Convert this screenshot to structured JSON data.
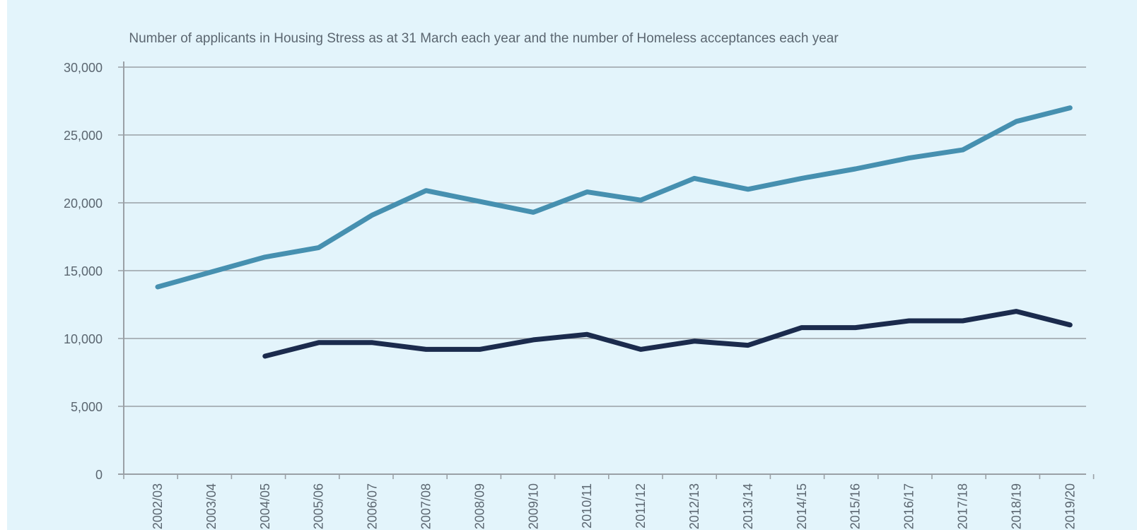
{
  "chart_data": {
    "type": "line",
    "title": "",
    "subtitle": "Number of applicants in Housing Stress as at 31 March each year and the number of Homeless acceptances each year",
    "xlabel": "",
    "ylabel": "",
    "ylim": [
      0,
      30000
    ],
    "yticks": [
      0,
      5000,
      10000,
      15000,
      20000,
      25000,
      30000
    ],
    "ytick_labels": [
      "0",
      "5,000",
      "10,000",
      "15,000",
      "20,000",
      "25,000",
      "30,000"
    ],
    "categories": [
      "2002/03",
      "2003/04",
      "2004/05",
      "2005/06",
      "2006/07",
      "2007/08",
      "2008/09",
      "2009/10",
      "2010/11",
      "2011/12",
      "2012/13",
      "2013/14",
      "2014/15",
      "2015/16",
      "2016/17",
      "2017/18",
      "2018/19",
      "2019/20"
    ],
    "grid": true,
    "legend": "none",
    "series": [
      {
        "color": "#4690b0",
        "values": [
          13800,
          14900,
          16000,
          16700,
          19100,
          20900,
          20100,
          19300,
          20800,
          20200,
          21800,
          21000,
          21800,
          22500,
          23300,
          23900,
          26000,
          27000
        ]
      },
      {
        "color": "#1b2b4d",
        "values": [
          null,
          null,
          8700,
          9700,
          9700,
          9200,
          9200,
          9900,
          10300,
          9200,
          9800,
          9500,
          10800,
          10800,
          11300,
          11300,
          12000,
          11000
        ]
      }
    ]
  },
  "colors": {
    "background": "#e3f4fb",
    "grid": "#9aa0a6",
    "axis": "#9aa0a6",
    "text": "#5b6670",
    "title_accent": "#12a3cf"
  }
}
